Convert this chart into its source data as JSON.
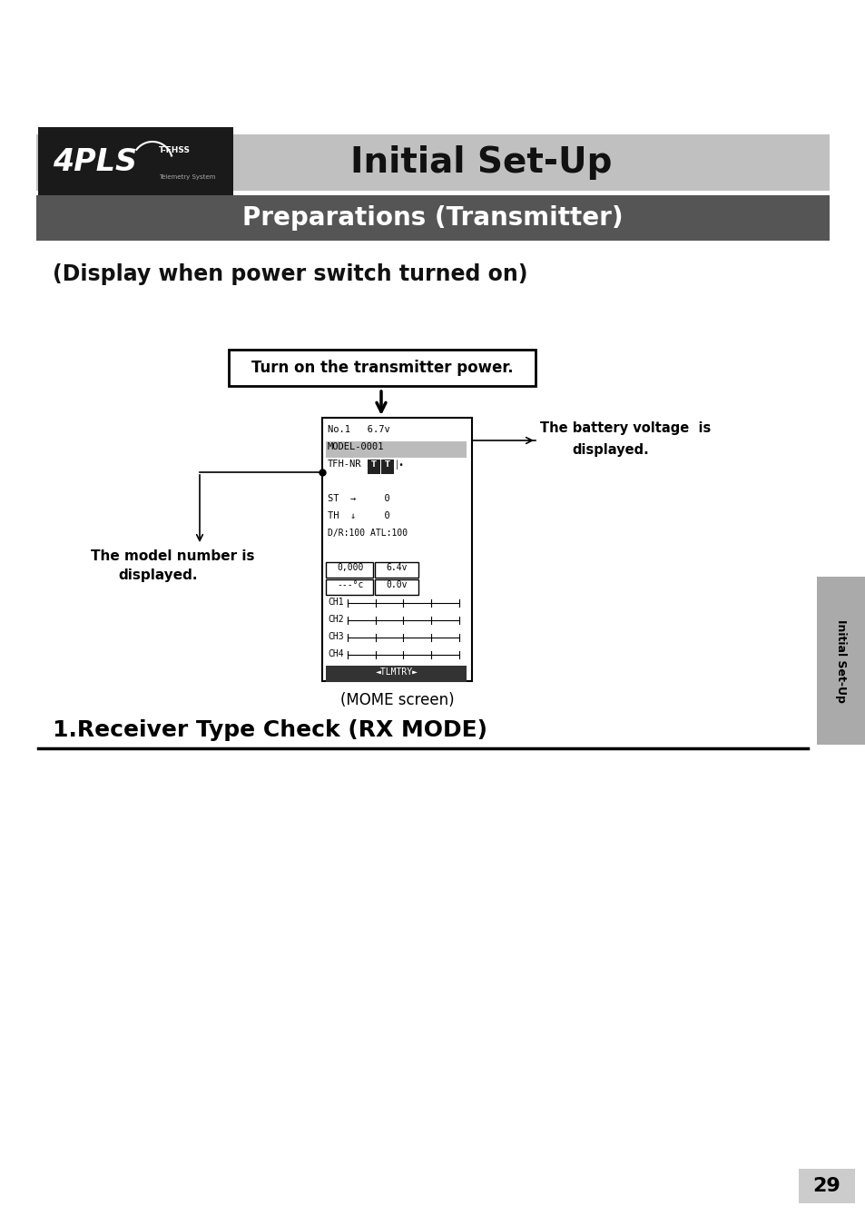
{
  "bg_color": "#ffffff",
  "header_bar_color": "#c0c0c0",
  "logo_bg_color": "#1a1a1a",
  "title_text": "Initial Set-Up",
  "section_bar_color": "#555555",
  "section_text": "Preparations (Transmitter)",
  "subtitle_text": "(Display when power switch turned on)",
  "callout_box_text": "Turn on the transmitter power.",
  "battery_label_line1": "The battery voltage  is",
  "battery_label_line2": "displayed.",
  "model_label_line1": "The model number is",
  "model_label_line2": "displayed.",
  "mome_label": "(MOME screen)",
  "rx_mode_text": "1.Receiver Type Check (RX MODE)",
  "sidebar_color": "#aaaaaa",
  "sidebar_text": "Initial Set-Up",
  "page_number": "29"
}
